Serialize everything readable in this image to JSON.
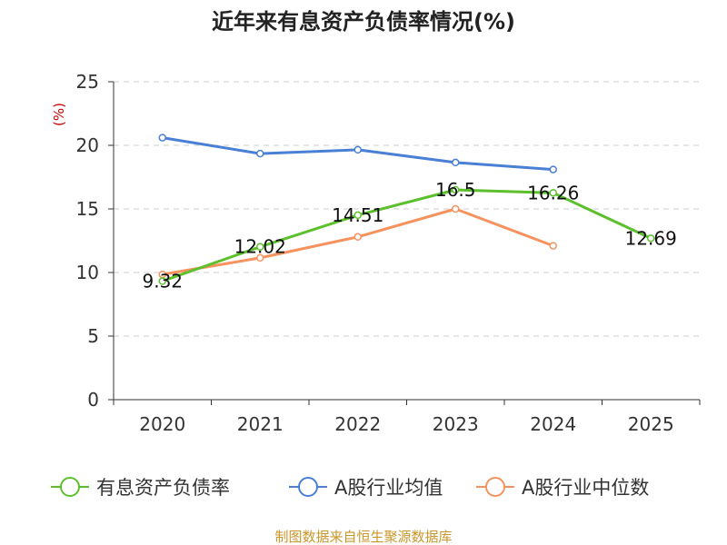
{
  "chart_data": {
    "type": "line",
    "title": "近年来有息资产负债率情况(%)",
    "ylabel": "(%)",
    "xlabel": "",
    "categories": [
      "2020",
      "2021",
      "2022",
      "2023",
      "2024",
      "2025"
    ],
    "ylim": [
      0,
      25
    ],
    "yticks": [
      0,
      5,
      10,
      15,
      20,
      25
    ],
    "grid": true,
    "legend_position": "bottom",
    "series": [
      {
        "name": "有息资产负债率",
        "color": "#5cc02c",
        "values": [
          9.32,
          12.02,
          14.51,
          16.5,
          16.26,
          12.69
        ],
        "labels": [
          "9.32",
          "12.02",
          "14.51",
          "16.5",
          "16.26",
          "12.69"
        ]
      },
      {
        "name": "A股行业均值",
        "color": "#4a7fd6",
        "values": [
          20.6,
          19.35,
          19.65,
          18.65,
          18.1,
          null
        ]
      },
      {
        "name": "A股行业中位数",
        "color": "#f5925e",
        "values": [
          9.85,
          11.15,
          12.8,
          15.0,
          12.1,
          null
        ]
      }
    ]
  },
  "source": "制图数据来自恒生聚源数据库"
}
